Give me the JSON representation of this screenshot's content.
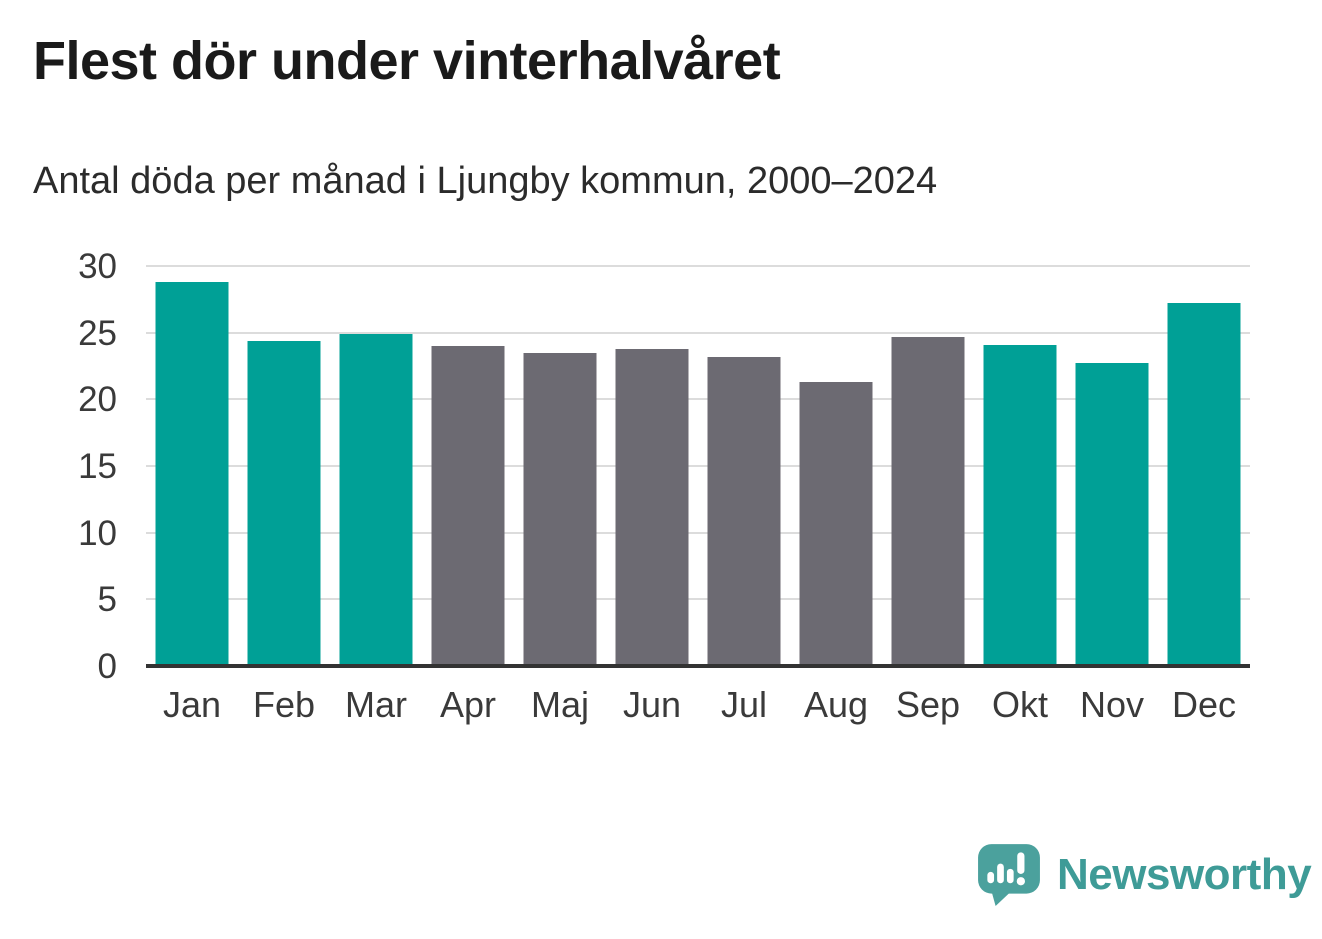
{
  "title": "Flest dör under vinterhalvåret",
  "subtitle": "Antal döda per månad i Ljungby kommun, 2000–2024",
  "chart_data": {
    "type": "bar",
    "title": "Flest dör under vinterhalvåret",
    "subtitle": "Antal döda per månad i Ljungby kommun, 2000–2024",
    "categories": [
      "Jan",
      "Feb",
      "Mar",
      "Apr",
      "Maj",
      "Jun",
      "Jul",
      "Aug",
      "Sep",
      "Okt",
      "Nov",
      "Dec"
    ],
    "values": [
      28.8,
      24.4,
      24.9,
      24.0,
      23.5,
      23.8,
      23.2,
      21.3,
      24.7,
      24.1,
      22.7,
      27.2
    ],
    "bar_colors": [
      "#00A096",
      "#00A096",
      "#00A096",
      "#6C6A72",
      "#6C6A72",
      "#6C6A72",
      "#6C6A72",
      "#6C6A72",
      "#6C6A72",
      "#00A096",
      "#00A096",
      "#00A096"
    ],
    "highlight_color": "#00A096",
    "muted_color": "#6C6A72",
    "xlabel": "",
    "ylabel": "",
    "ylim": [
      0,
      30
    ],
    "yticks": [
      0,
      5,
      10,
      15,
      20,
      25,
      30
    ],
    "grid": "horizontal",
    "gridline_color": "#dcdcdc",
    "axis_line_color": "#333333",
    "legend": "none"
  },
  "branding": {
    "logo_text": "Newsworthy",
    "wordmark_color": "#3E9B97",
    "icon_color": "#4BA19D"
  }
}
